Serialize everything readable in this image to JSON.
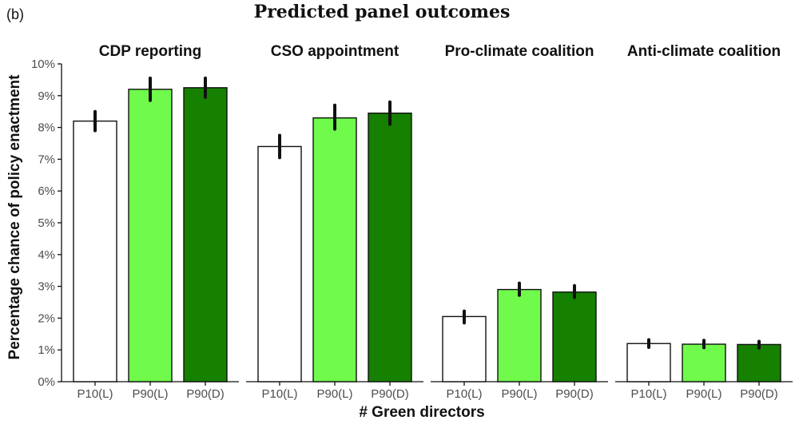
{
  "panel_tag": "(b)",
  "chart_data": {
    "type": "bar",
    "title": "Predicted panel outcomes",
    "xlabel": "# Green directors",
    "ylabel": "Percentage chance of policy enactment",
    "ylim": [
      0,
      10
    ],
    "y_ticks": [
      "0%",
      "1%",
      "2%",
      "3%",
      "4%",
      "5%",
      "6%",
      "7%",
      "8%",
      "9%",
      "10%"
    ],
    "categories": [
      "P10(L)",
      "P90(L)",
      "P90(D)"
    ],
    "category_colors": [
      "#ffffff",
      "#70fa4b",
      "#168000"
    ],
    "grid": false,
    "facets": [
      {
        "title": "CDP reporting",
        "values": [
          8.2,
          9.2,
          9.25
        ],
        "error_low": [
          7.9,
          8.85,
          8.95
        ],
        "error_high": [
          8.5,
          9.55,
          9.55
        ]
      },
      {
        "title": "CSO appointment",
        "values": [
          7.4,
          8.3,
          8.45
        ],
        "error_low": [
          7.05,
          7.95,
          8.1
        ],
        "error_high": [
          7.75,
          8.7,
          8.8
        ]
      },
      {
        "title": "Pro-climate coalition",
        "values": [
          2.05,
          2.9,
          2.82
        ],
        "error_low": [
          1.85,
          2.72,
          2.65
        ],
        "error_high": [
          2.22,
          3.1,
          3.02
        ]
      },
      {
        "title": "Anti-climate coalition",
        "values": [
          1.2,
          1.18,
          1.17
        ],
        "error_low": [
          1.08,
          1.07,
          1.06
        ],
        "error_high": [
          1.32,
          1.3,
          1.27
        ]
      }
    ]
  }
}
